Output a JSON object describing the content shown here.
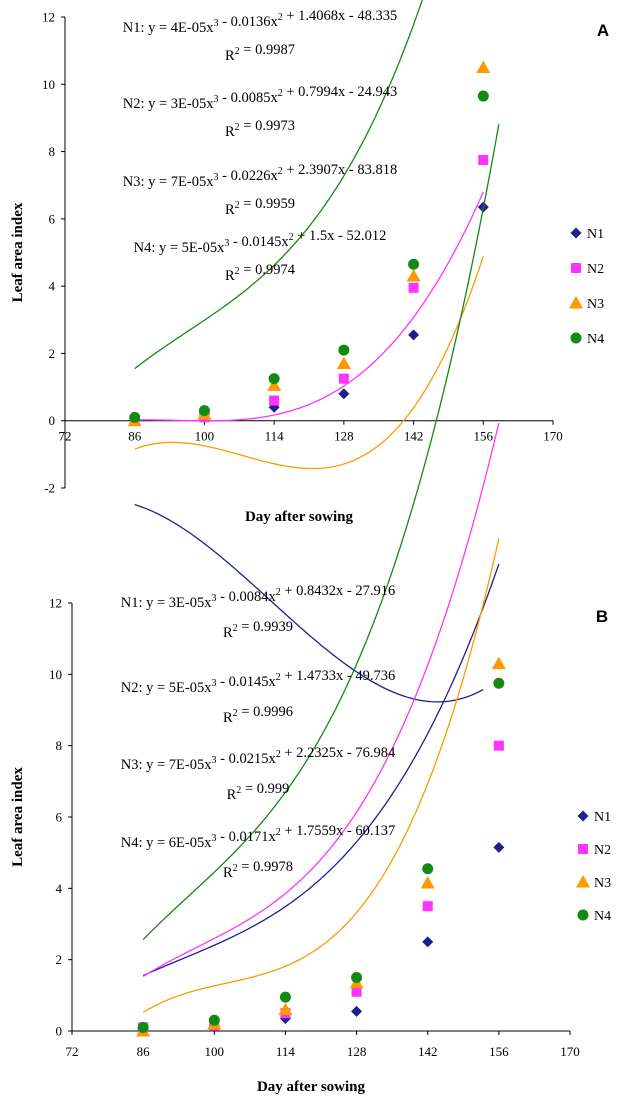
{
  "series_style": [
    {
      "color": "#1f1f8f",
      "marker": "diamond"
    },
    {
      "color": "#ff33ff",
      "marker": "square"
    },
    {
      "color": "#ff9900",
      "marker": "triangle"
    },
    {
      "color": "#138a13",
      "marker": "circle"
    }
  ],
  "chart_data": [
    {
      "type": "scatter",
      "panel_label": "A",
      "xlabel": "Day after sowing",
      "ylabel": "Leaf area index",
      "xlim": [
        72,
        170
      ],
      "ylim": [
        -2,
        12
      ],
      "x_ticks": [
        "72",
        "86",
        "100",
        "114",
        "128",
        "142",
        "156",
        "170"
      ],
      "y_ticks": [
        "-2",
        "0",
        "2",
        "4",
        "6",
        "8",
        "10",
        "12"
      ],
      "x": [
        86,
        100,
        114,
        128,
        142,
        156
      ],
      "legend_position": "right",
      "series": [
        {
          "name": "N1",
          "values": [
            0.05,
            0.2,
            0.4,
            0.8,
            2.55,
            6.35
          ],
          "equation": "N1: y = 4E-05x3 - 0.0136x2 + 1.4068x - 48.335",
          "r2": "R2 = 0.9987",
          "coef": [
            4e-05,
            -0.0136,
            1.4068,
            -48.335
          ]
        },
        {
          "name": "N2",
          "values": [
            0.0,
            0.1,
            0.6,
            1.25,
            3.95,
            7.75
          ],
          "equation": "N2: y = 3E-05x3 - 0.0085x2 + 0.7994x - 24.943",
          "r2": "R2 = 0.9973",
          "coef": [
            3e-05,
            -0.0085,
            0.7994,
            -24.943
          ]
        },
        {
          "name": "N3",
          "values": [
            0.0,
            0.2,
            1.05,
            1.7,
            4.3,
            10.5
          ],
          "equation": "N3: y = 7E-05x3 - 0.0226x2 + 2.3907x - 83.818",
          "r2": "R2 = 0.9959",
          "coef": [
            7e-05,
            -0.0226,
            2.3907,
            -83.818
          ]
        },
        {
          "name": "N4",
          "values": [
            0.1,
            0.3,
            1.25,
            2.1,
            4.65,
            9.65
          ],
          "equation": "N4: y = 5E-05x3 - 0.0145x2 + 1.5x - 52.012",
          "r2": "R2 = 0.9974",
          "coef": [
            5e-05,
            -0.0145,
            1.5,
            -52.012
          ]
        }
      ]
    },
    {
      "type": "scatter",
      "panel_label": "B",
      "xlabel": "Day after sowing",
      "ylabel": "Leaf area index",
      "xlim": [
        72,
        170
      ],
      "ylim": [
        0,
        12
      ],
      "x_ticks": [
        "72",
        "86",
        "100",
        "114",
        "128",
        "142",
        "156",
        "170"
      ],
      "y_ticks": [
        "0",
        "2",
        "4",
        "6",
        "8",
        "10",
        "12"
      ],
      "x": [
        86,
        100,
        114,
        128,
        142,
        156
      ],
      "legend_position": "right",
      "series": [
        {
          "name": "N1",
          "values": [
            0.05,
            0.15,
            0.35,
            0.55,
            2.5,
            5.15
          ],
          "equation": "N1: y = 3E-05x3 - 0.0084x2 + 0.8432x - 27.916",
          "r2": "R2 = 0.9939",
          "coef": [
            3e-05,
            -0.0084,
            0.8432,
            -27.916
          ]
        },
        {
          "name": "N2",
          "values": [
            0.1,
            0.15,
            0.5,
            1.1,
            3.5,
            8.0
          ],
          "equation": "N2: y = 5E-05x3 - 0.0145x2 + 1.4733x - 49.736",
          "r2": "R2 = 0.9996",
          "coef": [
            5e-05,
            -0.0145,
            1.4733,
            -49.736
          ]
        },
        {
          "name": "N3",
          "values": [
            0.0,
            0.2,
            0.6,
            1.35,
            4.15,
            10.3
          ],
          "equation": "N3: y = 7E-05x3 - 0.0215x2 + 2.2325x - 76.984",
          "r2": "R2 = 0.999",
          "coef": [
            7e-05,
            -0.0215,
            2.2325,
            -76.984
          ]
        },
        {
          "name": "N4",
          "values": [
            0.1,
            0.3,
            0.95,
            1.5,
            4.55,
            9.75
          ],
          "equation": "N4: y = 6E-05x3 - 0.0171x2 + 1.7559x - 60.137",
          "r2": "R2 = 0.9978",
          "coef": [
            6e-05,
            -0.0171,
            1.7559,
            -60.137
          ]
        }
      ]
    }
  ]
}
